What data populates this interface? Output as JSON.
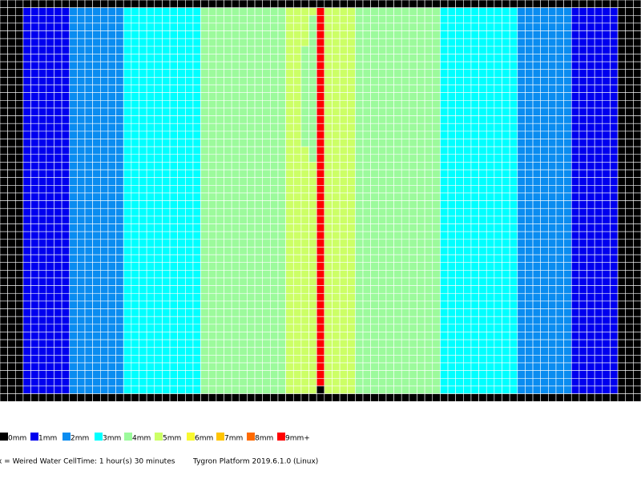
{
  "grid": {
    "rows": 52,
    "border_rows": 1,
    "border_level": 0,
    "column_levels": [
      0,
      0,
      0,
      1,
      1,
      1,
      1,
      1,
      1,
      2,
      2,
      2,
      2,
      2,
      2,
      2,
      3,
      3,
      3,
      3,
      3,
      3,
      3,
      3,
      3,
      3,
      4,
      4,
      4,
      4,
      4,
      4,
      4,
      4,
      4,
      4,
      4,
      5,
      5,
      5,
      5,
      9,
      5,
      5,
      5,
      5,
      4,
      4,
      4,
      4,
      4,
      4,
      4,
      4,
      4,
      4,
      4,
      3,
      3,
      3,
      3,
      3,
      3,
      3,
      3,
      3,
      3,
      2,
      2,
      2,
      2,
      2,
      2,
      2,
      1,
      1,
      1,
      1,
      1,
      1,
      0,
      0,
      0
    ],
    "overrides": [
      [
        50,
        41,
        0
      ],
      [
        2,
        40,
        4
      ],
      [
        3,
        40,
        4
      ],
      [
        4,
        40,
        4
      ],
      [
        5,
        40,
        4
      ],
      [
        6,
        40,
        4
      ],
      [
        7,
        40,
        4
      ],
      [
        8,
        40,
        4
      ],
      [
        9,
        40,
        4
      ],
      [
        10,
        40,
        4
      ],
      [
        11,
        40,
        4
      ],
      [
        12,
        40,
        4
      ],
      [
        13,
        40,
        4
      ],
      [
        14,
        40,
        4
      ],
      [
        15,
        40,
        4
      ],
      [
        16,
        40,
        4
      ],
      [
        17,
        40,
        4
      ],
      [
        18,
        40,
        4
      ],
      [
        19,
        40,
        4
      ],
      [
        20,
        40,
        4
      ],
      [
        6,
        39,
        4
      ],
      [
        7,
        39,
        4
      ],
      [
        8,
        39,
        4
      ],
      [
        9,
        39,
        4
      ],
      [
        10,
        39,
        4
      ],
      [
        11,
        39,
        4
      ],
      [
        12,
        39,
        4
      ],
      [
        13,
        39,
        4
      ],
      [
        14,
        39,
        4
      ],
      [
        15,
        39,
        4
      ],
      [
        16,
        39,
        4
      ],
      [
        17,
        39,
        4
      ],
      [
        18,
        39,
        4
      ]
    ]
  },
  "legend": [
    {
      "label": "0mm",
      "color": "#000000"
    },
    {
      "label": "1mm",
      "color": "#0000ee"
    },
    {
      "label": "2mm",
      "color": "#0a8cf0"
    },
    {
      "label": "3mm",
      "color": "#00ffff"
    },
    {
      "label": "4mm",
      "color": "#9cfa9c"
    },
    {
      "label": "5mm",
      "color": "#ccff66"
    },
    {
      "label": "6mm",
      "color": "#f8f830"
    },
    {
      "label": "7mm",
      "color": "#ffc400"
    },
    {
      "label": "8mm",
      "color": "#ff6a00"
    },
    {
      "label": "9mm+",
      "color": "#ff0000"
    }
  ],
  "footer": {
    "weir": "x = Weired Water Cell",
    "time": "Time: 1 hour(s) 30 minutes",
    "platform": "Tygron Platform 2019.6.1.0 (Linux)"
  }
}
